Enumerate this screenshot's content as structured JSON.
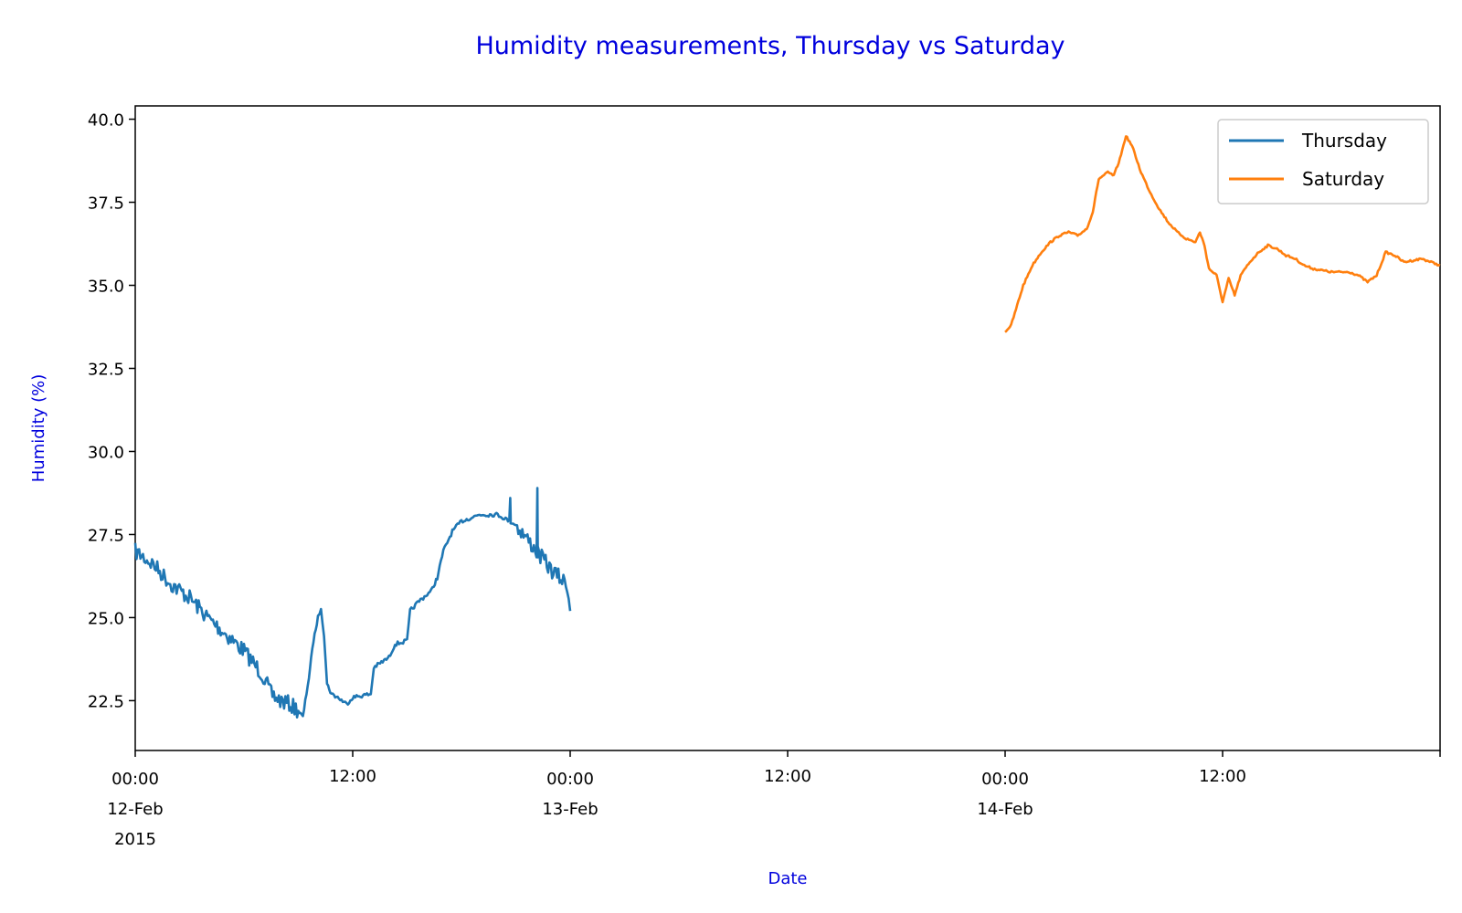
{
  "chart_data": {
    "type": "line",
    "title": "Humidity measurements, Thursday vs Saturday",
    "xlabel": "Date",
    "ylabel": "Humidity (%)",
    "xlim": [
      "2015-02-12 00:00",
      "2015-02-15 00:00"
    ],
    "ylim": [
      21.0,
      40.4
    ],
    "grid": false,
    "legend": "top-right",
    "y_ticks": [
      "22.5",
      "25.0",
      "27.5",
      "30.0",
      "32.5",
      "35.0",
      "37.5",
      "40.0"
    ],
    "x_ticks": [
      {
        "at": "2015-02-12 00:00",
        "lines": [
          "00:00",
          "12-Feb",
          "2015"
        ]
      },
      {
        "at": "2015-02-12 12:00",
        "lines": [
          "12:00"
        ]
      },
      {
        "at": "2015-02-13 00:00",
        "lines": [
          "00:00",
          "13-Feb"
        ]
      },
      {
        "at": "2015-02-13 12:00",
        "lines": [
          "12:00"
        ]
      },
      {
        "at": "2015-02-14 00:00",
        "lines": [
          "00:00",
          "14-Feb"
        ]
      },
      {
        "at": "2015-02-14 12:00",
        "lines": [
          "12:00"
        ]
      }
    ],
    "series": [
      {
        "name": "Thursday",
        "color": "#1f77b4",
        "noisy": true,
        "points": [
          [
            "2015-02-12 00:00",
            27.0
          ],
          [
            "2015-02-12 01:00",
            26.6
          ],
          [
            "2015-02-12 02:00",
            26.0
          ],
          [
            "2015-02-12 03:00",
            25.6
          ],
          [
            "2015-02-12 04:00",
            25.0
          ],
          [
            "2015-02-12 05:00",
            24.5
          ],
          [
            "2015-02-12 06:00",
            24.0
          ],
          [
            "2015-02-12 07:00",
            23.3
          ],
          [
            "2015-02-12 07:30",
            22.7
          ],
          [
            "2015-02-12 08:00",
            22.5
          ],
          [
            "2015-02-12 08:30",
            22.4
          ],
          [
            "2015-02-12 09:00",
            22.2
          ],
          [
            "2015-02-12 09:15",
            22.0
          ],
          [
            "2015-02-12 09:35",
            23.2
          ],
          [
            "2015-02-12 09:50",
            24.3
          ],
          [
            "2015-02-12 10:05",
            25.0
          ],
          [
            "2015-02-12 10:15",
            25.3
          ],
          [
            "2015-02-12 10:25",
            24.5
          ],
          [
            "2015-02-12 10:35",
            23.0
          ],
          [
            "2015-02-12 10:50",
            22.7
          ],
          [
            "2015-02-12 11:10",
            22.6
          ],
          [
            "2015-02-12 11:40",
            22.4
          ],
          [
            "2015-02-12 12:00",
            22.6
          ],
          [
            "2015-02-12 13:00",
            22.7
          ],
          [
            "2015-02-12 13:10",
            23.5
          ],
          [
            "2015-02-12 14:00",
            23.8
          ],
          [
            "2015-02-12 14:20",
            24.2
          ],
          [
            "2015-02-12 15:00",
            24.3
          ],
          [
            "2015-02-12 15:10",
            25.2
          ],
          [
            "2015-02-12 15:40",
            25.5
          ],
          [
            "2015-02-12 16:20",
            25.8
          ],
          [
            "2015-02-12 16:40",
            26.2
          ],
          [
            "2015-02-12 17:00",
            27.0
          ],
          [
            "2015-02-12 17:30",
            27.6
          ],
          [
            "2015-02-12 18:00",
            27.9
          ],
          [
            "2015-02-12 19:00",
            28.1
          ],
          [
            "2015-02-12 20:00",
            28.1
          ],
          [
            "2015-02-12 21:00",
            27.8
          ],
          [
            "2015-02-12 22:00",
            27.1
          ],
          [
            "2015-02-12 23:00",
            26.4
          ],
          [
            "2015-02-12 23:50",
            26.0
          ],
          [
            "2015-02-13 00:00",
            25.2
          ]
        ],
        "spikes": [
          [
            "2015-02-12 22:10",
            28.9
          ],
          [
            "2015-02-12 20:40",
            28.6
          ]
        ]
      },
      {
        "name": "Saturday",
        "color": "#ff7f0e",
        "noisy": false,
        "points": [
          [
            "2015-02-14 00:00",
            33.6
          ],
          [
            "2015-02-14 00:20",
            33.8
          ],
          [
            "2015-02-14 00:40",
            34.4
          ],
          [
            "2015-02-14 01:00",
            35.0
          ],
          [
            "2015-02-14 01:30",
            35.6
          ],
          [
            "2015-02-14 02:00",
            36.0
          ],
          [
            "2015-02-14 02:30",
            36.3
          ],
          [
            "2015-02-14 03:00",
            36.5
          ],
          [
            "2015-02-14 03:30",
            36.6
          ],
          [
            "2015-02-14 04:00",
            36.5
          ],
          [
            "2015-02-14 04:30",
            36.7
          ],
          [
            "2015-02-14 04:50",
            37.2
          ],
          [
            "2015-02-14 05:10",
            38.2
          ],
          [
            "2015-02-14 05:40",
            38.4
          ],
          [
            "2015-02-14 06:00",
            38.3
          ],
          [
            "2015-02-14 06:20",
            38.8
          ],
          [
            "2015-02-14 06:40",
            39.5
          ],
          [
            "2015-02-14 07:00",
            39.2
          ],
          [
            "2015-02-14 07:30",
            38.4
          ],
          [
            "2015-02-14 08:00",
            37.8
          ],
          [
            "2015-02-14 08:30",
            37.3
          ],
          [
            "2015-02-14 09:00",
            36.9
          ],
          [
            "2015-02-14 09:30",
            36.6
          ],
          [
            "2015-02-14 10:00",
            36.4
          ],
          [
            "2015-02-14 10:30",
            36.3
          ],
          [
            "2015-02-14 10:45",
            36.6
          ],
          [
            "2015-02-14 11:00",
            36.2
          ],
          [
            "2015-02-14 11:15",
            35.5
          ],
          [
            "2015-02-14 11:40",
            35.3
          ],
          [
            "2015-02-14 12:00",
            34.5
          ],
          [
            "2015-02-14 12:20",
            35.2
          ],
          [
            "2015-02-14 12:40",
            34.7
          ],
          [
            "2015-02-14 13:00",
            35.3
          ],
          [
            "2015-02-14 13:30",
            35.7
          ],
          [
            "2015-02-14 14:00",
            36.0
          ],
          [
            "2015-02-14 14:30",
            36.2
          ],
          [
            "2015-02-14 15:00",
            36.1
          ],
          [
            "2015-02-14 15:30",
            35.9
          ],
          [
            "2015-02-14 16:00",
            35.8
          ],
          [
            "2015-02-14 16:30",
            35.6
          ],
          [
            "2015-02-14 17:00",
            35.5
          ],
          [
            "2015-02-14 18:00",
            35.4
          ],
          [
            "2015-02-14 19:00",
            35.4
          ],
          [
            "2015-02-14 19:30",
            35.3
          ],
          [
            "2015-02-14 20:00",
            35.1
          ],
          [
            "2015-02-14 20:30",
            35.3
          ],
          [
            "2015-02-14 21:00",
            36.0
          ],
          [
            "2015-02-14 21:30",
            35.9
          ],
          [
            "2015-02-14 22:00",
            35.7
          ],
          [
            "2015-02-14 23:00",
            35.8
          ],
          [
            "2015-02-15 00:00",
            35.6
          ]
        ]
      }
    ]
  }
}
